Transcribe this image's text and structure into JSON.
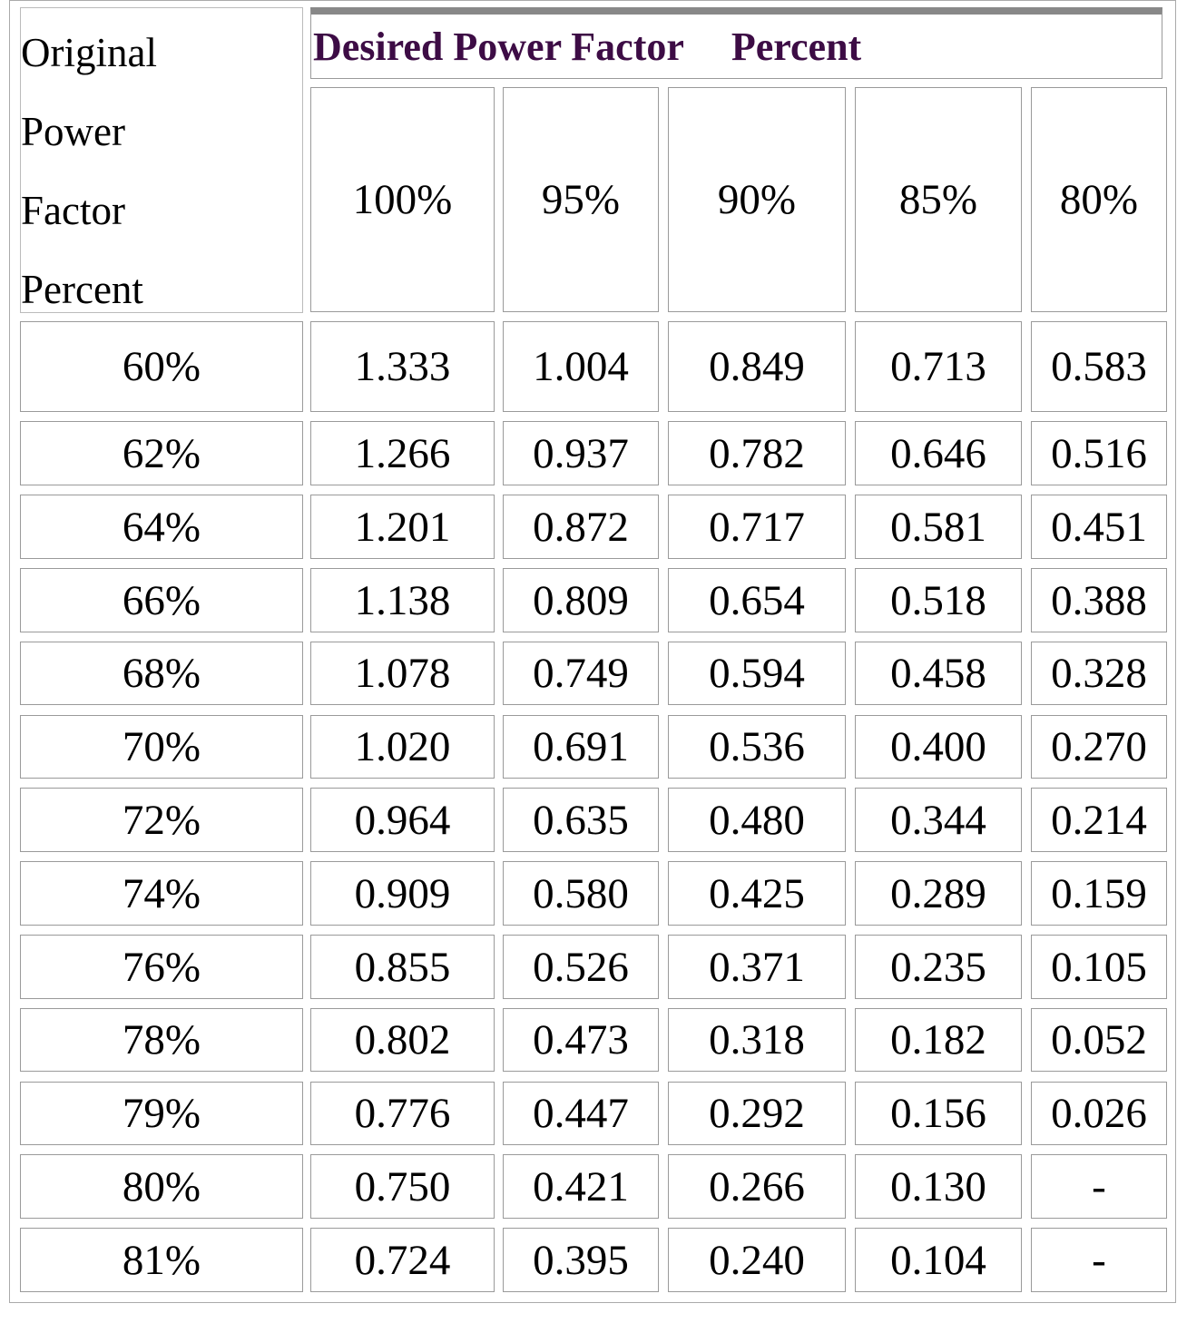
{
  "table": {
    "corner": [
      "Original",
      "Power",
      "Factor",
      "Percent"
    ],
    "group_header": {
      "title": "Desired Power Factor",
      "unit": "Percent"
    },
    "columns": [
      "100%",
      "95%",
      "90%",
      "85%",
      "80%"
    ],
    "rows": [
      [
        "60%",
        "1.333",
        "1.004",
        "0.849",
        "0.713",
        "0.583"
      ],
      [
        "62%",
        "1.266",
        "0.937",
        "0.782",
        "0.646",
        "0.516"
      ],
      [
        "64%",
        "1.201",
        "0.872",
        "0.717",
        "0.581",
        "0.451"
      ],
      [
        "66%",
        "1.138",
        "0.809",
        "0.654",
        "0.518",
        "0.388"
      ],
      [
        "68%",
        "1.078",
        "0.749",
        "0.594",
        "0.458",
        "0.328"
      ],
      [
        "70%",
        "1.020",
        "0.691",
        "0.536",
        "0.400",
        "0.270"
      ],
      [
        "72%",
        "0.964",
        "0.635",
        "0.480",
        "0.344",
        "0.214"
      ],
      [
        "74%",
        "0.909",
        "0.580",
        "0.425",
        "0.289",
        "0.159"
      ],
      [
        "76%",
        "0.855",
        "0.526",
        "0.371",
        "0.235",
        "0.105"
      ],
      [
        "78%",
        "0.802",
        "0.473",
        "0.318",
        "0.182",
        "0.052"
      ],
      [
        "79%",
        "0.776",
        "0.447",
        "0.292",
        "0.156",
        "0.026"
      ],
      [
        "80%",
        "0.750",
        "0.421",
        "0.266",
        "0.130",
        "-"
      ],
      [
        "81%",
        "0.724",
        "0.395",
        "0.240",
        "0.104",
        "-"
      ]
    ]
  }
}
